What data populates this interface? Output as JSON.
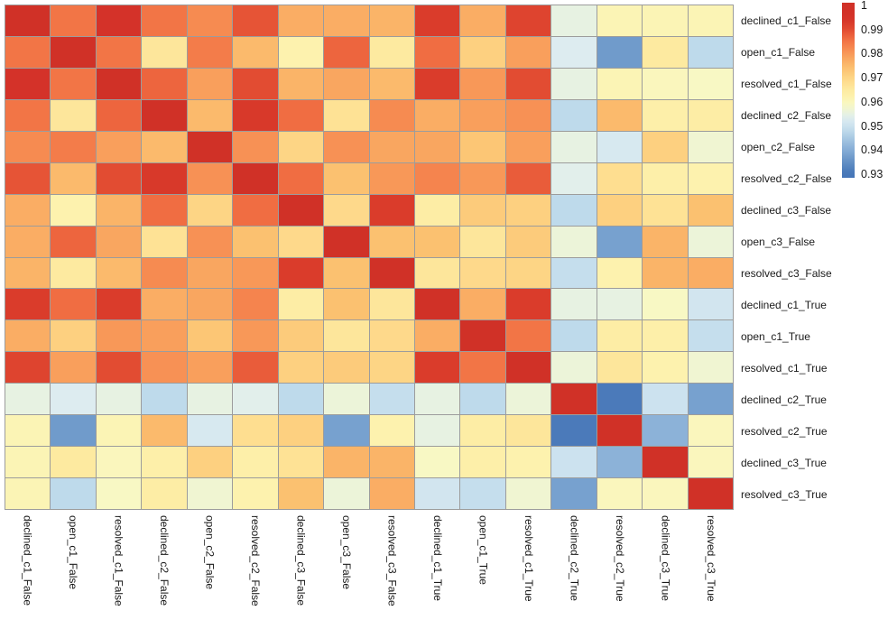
{
  "chart_data": {
    "type": "heatmap",
    "title": "",
    "labels": [
      "declined_c1_False",
      "open_c1_False",
      "resolved_c1_False",
      "declined_c2_False",
      "open_c2_False",
      "resolved_c2_False",
      "declined_c3_False",
      "open_c3_False",
      "resolved_c3_False",
      "declined_c1_True",
      "open_c1_True",
      "resolved_c1_True",
      "declined_c2_True",
      "resolved_c2_True",
      "declined_c3_True",
      "resolved_c3_True"
    ],
    "matrix": [
      [
        1.0,
        0.985,
        0.995,
        0.985,
        0.982,
        0.989,
        0.977,
        0.977,
        0.976,
        0.992,
        0.977,
        0.991,
        0.955,
        0.961,
        0.961,
        0.961
      ],
      [
        0.985,
        1.0,
        0.985,
        0.966,
        0.984,
        0.975,
        0.962,
        0.987,
        0.965,
        0.986,
        0.971,
        0.979,
        0.953,
        0.937,
        0.965,
        0.948
      ],
      [
        0.995,
        0.985,
        1.0,
        0.987,
        0.979,
        0.99,
        0.976,
        0.978,
        0.975,
        0.992,
        0.98,
        0.99,
        0.955,
        0.961,
        0.96,
        0.959
      ],
      [
        0.985,
        0.966,
        0.987,
        1.0,
        0.975,
        0.993,
        0.986,
        0.967,
        0.982,
        0.977,
        0.979,
        0.981,
        0.948,
        0.975,
        0.963,
        0.964
      ],
      [
        0.982,
        0.984,
        0.979,
        0.975,
        1.0,
        0.981,
        0.97,
        0.981,
        0.978,
        0.978,
        0.973,
        0.979,
        0.955,
        0.952,
        0.971,
        0.957
      ],
      [
        0.989,
        0.975,
        0.99,
        0.993,
        0.981,
        1.0,
        0.986,
        0.974,
        0.98,
        0.983,
        0.98,
        0.988,
        0.954,
        0.968,
        0.963,
        0.962
      ],
      [
        0.977,
        0.962,
        0.976,
        0.986,
        0.97,
        0.986,
        1.0,
        0.969,
        0.992,
        0.964,
        0.972,
        0.971,
        0.948,
        0.971,
        0.967,
        0.974
      ],
      [
        0.977,
        0.987,
        0.978,
        0.967,
        0.981,
        0.974,
        0.969,
        1.0,
        0.974,
        0.974,
        0.966,
        0.972,
        0.956,
        0.938,
        0.976,
        0.956
      ],
      [
        0.976,
        0.965,
        0.975,
        0.982,
        0.978,
        0.98,
        0.992,
        0.974,
        1.0,
        0.966,
        0.969,
        0.97,
        0.949,
        0.962,
        0.976,
        0.977
      ],
      [
        0.992,
        0.986,
        0.992,
        0.977,
        0.978,
        0.983,
        0.964,
        0.974,
        0.966,
        1.0,
        0.977,
        0.992,
        0.955,
        0.955,
        0.959,
        0.951
      ],
      [
        0.977,
        0.971,
        0.98,
        0.979,
        0.973,
        0.98,
        0.972,
        0.966,
        0.969,
        0.977,
        1.0,
        0.985,
        0.948,
        0.964,
        0.963,
        0.949
      ],
      [
        0.991,
        0.979,
        0.99,
        0.981,
        0.979,
        0.988,
        0.971,
        0.972,
        0.97,
        0.992,
        0.985,
        1.0,
        0.956,
        0.966,
        0.962,
        0.957
      ],
      [
        0.955,
        0.953,
        0.955,
        0.948,
        0.955,
        0.954,
        0.948,
        0.956,
        0.949,
        0.955,
        0.948,
        0.956,
        1.0,
        0.931,
        0.95,
        0.938
      ],
      [
        0.961,
        0.937,
        0.961,
        0.975,
        0.952,
        0.968,
        0.971,
        0.938,
        0.962,
        0.955,
        0.964,
        0.966,
        0.931,
        1.0,
        0.941,
        0.96
      ],
      [
        0.961,
        0.965,
        0.96,
        0.963,
        0.971,
        0.963,
        0.967,
        0.976,
        0.976,
        0.959,
        0.963,
        0.962,
        0.95,
        0.941,
        1.0,
        0.96
      ],
      [
        0.961,
        0.948,
        0.959,
        0.964,
        0.957,
        0.962,
        0.974,
        0.956,
        0.977,
        0.951,
        0.949,
        0.957,
        0.938,
        0.96,
        0.96,
        1.0
      ]
    ],
    "colorbar": {
      "tick_labels": [
        "1",
        "0.99",
        "0.98",
        "0.97",
        "0.96",
        "0.95",
        "0.94",
        "0.93"
      ],
      "vmin": 0.93,
      "vmax": 1.0,
      "position": "top-right"
    },
    "colormap_name": "RdYlBu_r",
    "colormap_stops": [
      {
        "v": 0.93,
        "color": "#4575b7"
      },
      {
        "v": 0.9325,
        "color": "#5382be"
      },
      {
        "v": 0.935,
        "color": "#6290c5"
      },
      {
        "v": 0.9375,
        "color": "#749ecd"
      },
      {
        "v": 0.94,
        "color": "#85acd6"
      },
      {
        "v": 0.945,
        "color": "#a8c8e2"
      },
      {
        "v": 0.948,
        "color": "#bedaeb"
      },
      {
        "v": 0.95,
        "color": "#cce2ef"
      },
      {
        "v": 0.9535,
        "color": "#e0eef0"
      },
      {
        "v": 0.956,
        "color": "#ecf4d9"
      },
      {
        "v": 0.959,
        "color": "#f8f8c4"
      },
      {
        "v": 0.962,
        "color": "#fdf2ae"
      },
      {
        "v": 0.965,
        "color": "#fdeaa0"
      },
      {
        "v": 0.968,
        "color": "#fede90"
      },
      {
        "v": 0.971,
        "color": "#fdd080"
      },
      {
        "v": 0.974,
        "color": "#fbc170"
      },
      {
        "v": 0.977,
        "color": "#faad64"
      },
      {
        "v": 0.98,
        "color": "#f89858"
      },
      {
        "v": 0.983,
        "color": "#f5844e"
      },
      {
        "v": 0.986,
        "color": "#f06d42"
      },
      {
        "v": 0.989,
        "color": "#e65436"
      },
      {
        "v": 0.992,
        "color": "#da3c2b"
      },
      {
        "v": 0.995,
        "color": "#d43229"
      },
      {
        "v": 1.0,
        "color": "#d03127"
      }
    ],
    "grid_color": "#9c9c9c",
    "background_color": "#ffffff",
    "legend_position": "none",
    "xlabel": "",
    "ylabel": ""
  }
}
